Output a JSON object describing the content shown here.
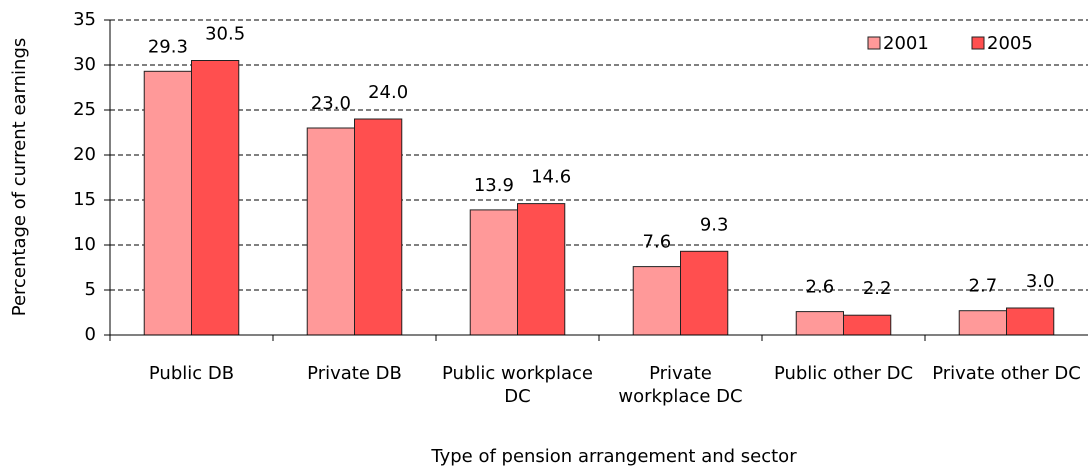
{
  "chart_data": {
    "type": "bar",
    "ylabel": "Percentage of current earnings",
    "xlabel": "Type of pension arrangement and sector",
    "categories": [
      "Public DB",
      "Private DB",
      "Public workplace DC",
      "Private workplace DC",
      "Public other DC",
      "Private other DC"
    ],
    "series": [
      {
        "name": "2001",
        "color": "#ff9999",
        "values": [
          29.3,
          23.0,
          13.9,
          7.6,
          2.6,
          2.7
        ],
        "value_labels": [
          "29.3",
          "23.0",
          "13.9",
          "7.6",
          "2.6",
          "2.7"
        ]
      },
      {
        "name": "2005",
        "color": "#ff4f4f",
        "values": [
          30.5,
          24.0,
          14.6,
          9.3,
          2.2,
          3.0
        ],
        "value_labels": [
          "30.5",
          "24.0",
          "14.6",
          "9.3",
          "2.2",
          "3.0"
        ]
      }
    ],
    "ylim": [
      0,
      35
    ],
    "yticks": [
      0,
      5,
      10,
      15,
      20,
      25,
      30,
      35
    ],
    "grid": true,
    "legend": "top-right"
  }
}
